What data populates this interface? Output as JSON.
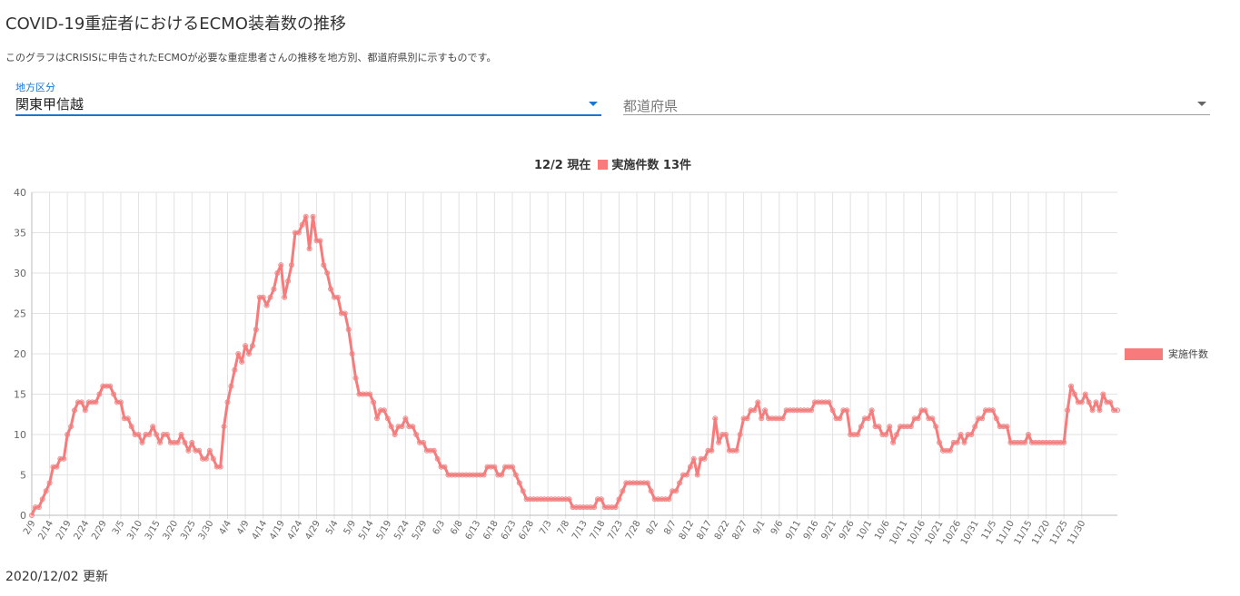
{
  "page": {
    "title": "COVID-19重症者におけるECMO装着数の推移",
    "description": "このグラフはCRISISに申告されたECMOが必要な重症患者さんの推移を地方別、都道府県別に示すものです。",
    "updated": "2020/12/02 更新"
  },
  "filters": {
    "region_label": "地方区分",
    "region_value": "関東甲信越",
    "prefecture_placeholder": "都道府県"
  },
  "chart_header": {
    "as_of": "12/2 現在",
    "summary": "実施件数 13件"
  },
  "colors": {
    "series": "#f87a7a",
    "accent": "#1976d2"
  },
  "chart_data": {
    "type": "line",
    "ylim": [
      0,
      40
    ],
    "y_ticks": [
      0,
      5,
      10,
      15,
      20,
      25,
      30,
      35,
      40
    ],
    "grid": true,
    "legend_position": "right",
    "x_labels": [
      "2/9",
      "2/14",
      "2/19",
      "2/24",
      "2/29",
      "3/5",
      "3/10",
      "3/15",
      "3/20",
      "3/25",
      "3/30",
      "4/4",
      "4/9",
      "4/14",
      "4/19",
      "4/24",
      "4/29",
      "5/4",
      "5/9",
      "5/14",
      "5/19",
      "5/24",
      "5/29",
      "6/3",
      "6/8",
      "6/13",
      "6/18",
      "6/23",
      "6/28",
      "7/3",
      "7/8",
      "7/13",
      "7/18",
      "7/23",
      "7/28",
      "8/2",
      "8/7",
      "8/12",
      "8/17",
      "8/22",
      "8/27",
      "9/1",
      "9/6",
      "9/11",
      "9/16",
      "9/21",
      "9/26",
      "10/1",
      "10/6",
      "10/11",
      "10/16",
      "10/21",
      "10/26",
      "10/31",
      "11/5",
      "11/10",
      "11/15",
      "11/20",
      "11/25",
      "11/30"
    ],
    "series": [
      {
        "name": "実施件数",
        "values": [
          0,
          1,
          1,
          2,
          3,
          4,
          6,
          6,
          7,
          7,
          10,
          11,
          13,
          14,
          14,
          13,
          14,
          14,
          14,
          15,
          16,
          16,
          16,
          15,
          14,
          14,
          12,
          12,
          11,
          10,
          10,
          9,
          10,
          10,
          11,
          10,
          9,
          10,
          10,
          9,
          9,
          9,
          10,
          9,
          8,
          9,
          8,
          8,
          7,
          7,
          8,
          7,
          6,
          6,
          11,
          14,
          16,
          18,
          20,
          19,
          21,
          20,
          21,
          23,
          27,
          27,
          26,
          27,
          28,
          30,
          31,
          27,
          29,
          31,
          35,
          35,
          36,
          37,
          33,
          37,
          34,
          34,
          31,
          30,
          28,
          27,
          27,
          25,
          25,
          23,
          20,
          17,
          15,
          15,
          15,
          15,
          14,
          12,
          13,
          13,
          12,
          11,
          10,
          11,
          11,
          12,
          11,
          11,
          10,
          9,
          9,
          8,
          8,
          8,
          7,
          6,
          6,
          5,
          5,
          5,
          5,
          5,
          5,
          5,
          5,
          5,
          5,
          5,
          6,
          6,
          6,
          5,
          5,
          6,
          6,
          6,
          5,
          4,
          3,
          2,
          2,
          2,
          2,
          2,
          2,
          2,
          2,
          2,
          2,
          2,
          2,
          2,
          1,
          1,
          1,
          1,
          1,
          1,
          1,
          2,
          2,
          1,
          1,
          1,
          1,
          2,
          3,
          4,
          4,
          4,
          4,
          4,
          4,
          4,
          3,
          2,
          2,
          2,
          2,
          2,
          3,
          3,
          4,
          5,
          5,
          6,
          7,
          5,
          7,
          7,
          8,
          8,
          12,
          9,
          10,
          10,
          8,
          8,
          8,
          10,
          12,
          12,
          13,
          13,
          14,
          12,
          13,
          12,
          12,
          12,
          12,
          12,
          13,
          13,
          13,
          13,
          13,
          13,
          13,
          13,
          14,
          14,
          14,
          14,
          14,
          13,
          12,
          12,
          13,
          13,
          10,
          10,
          10,
          11,
          12,
          12,
          13,
          11,
          11,
          10,
          10,
          11,
          9,
          10,
          11,
          11,
          11,
          11,
          12,
          12,
          13,
          13,
          12,
          12,
          11,
          9,
          8,
          8,
          8,
          9,
          9,
          10,
          9,
          10,
          10,
          11,
          12,
          12,
          13,
          13,
          13,
          12,
          11,
          11,
          11,
          9,
          9,
          9,
          9,
          9,
          10,
          9,
          9,
          9,
          9,
          9,
          9,
          9,
          9,
          9,
          9,
          13,
          16,
          15,
          14,
          14,
          15,
          14,
          13,
          14,
          13,
          15,
          14,
          14,
          13,
          13
        ]
      }
    ]
  }
}
